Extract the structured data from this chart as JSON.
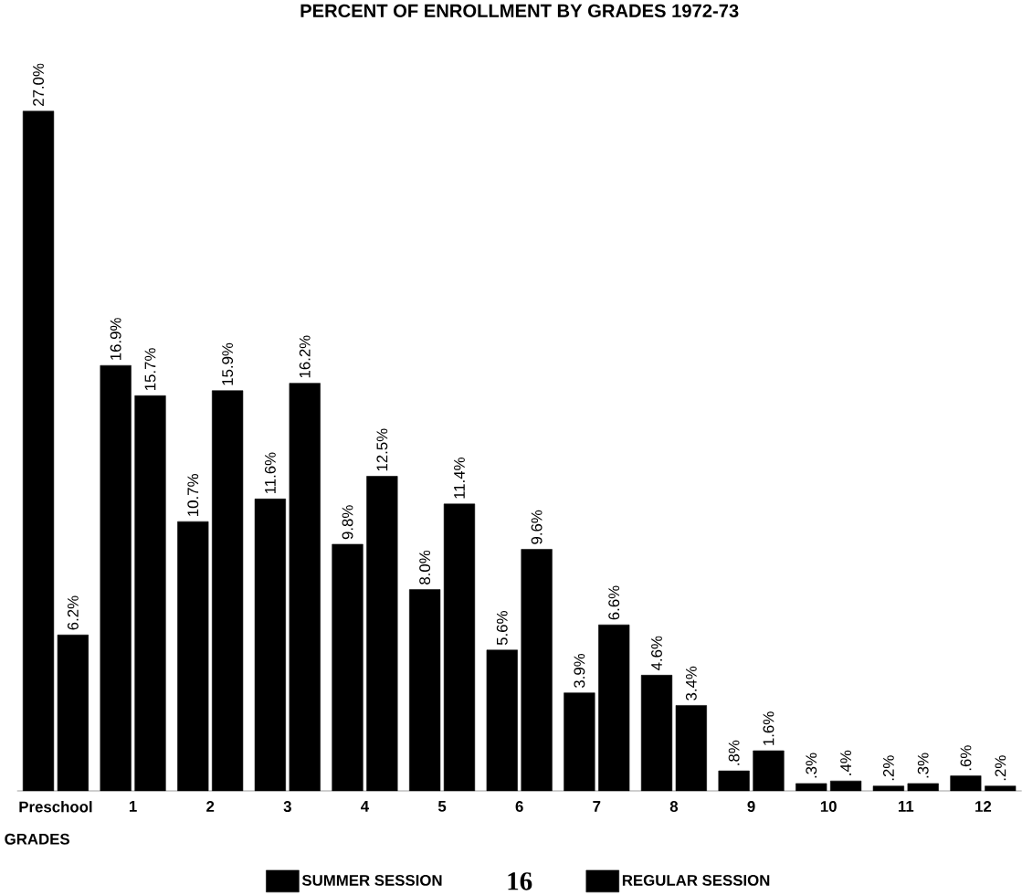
{
  "chart_data": {
    "type": "bar",
    "title": "PERCENT OF ENROLLMENT BY GRADES 1972-73",
    "xlabel": "GRADES",
    "categories": [
      "Preschool",
      "1",
      "2",
      "3",
      "4",
      "5",
      "6",
      "7",
      "8",
      "9",
      "10",
      "11",
      "12"
    ],
    "series": [
      {
        "name": "SUMMER SESSION",
        "color": "#000000",
        "values": [
          27.0,
          16.9,
          10.7,
          11.6,
          9.8,
          8.0,
          5.6,
          3.9,
          4.6,
          0.8,
          0.3,
          0.2,
          0.6
        ],
        "value_labels": [
          "27.0%",
          "16.9%",
          "10.7%",
          "11.6%",
          "9.8%",
          "8.0%",
          "5.6%",
          "3.9%",
          "4.6%",
          ".8%",
          ".3%",
          ".2%",
          ".6%"
        ]
      },
      {
        "name": "REGULAR SESSION",
        "color": "#000000",
        "values": [
          6.2,
          15.7,
          15.9,
          16.2,
          12.5,
          11.4,
          9.6,
          6.6,
          3.4,
          1.6,
          0.4,
          0.3,
          0.2
        ],
        "value_labels": [
          "6.2%",
          "15.7%",
          "15.9%",
          "16.2%",
          "12.5%",
          "11.4%",
          "9.6%",
          "6.6%",
          "3.4%",
          "1.6%",
          ".4%",
          ".3%",
          ".2%"
        ]
      }
    ],
    "legend": "bottom",
    "grid": false,
    "annotations": [
      "16"
    ]
  }
}
